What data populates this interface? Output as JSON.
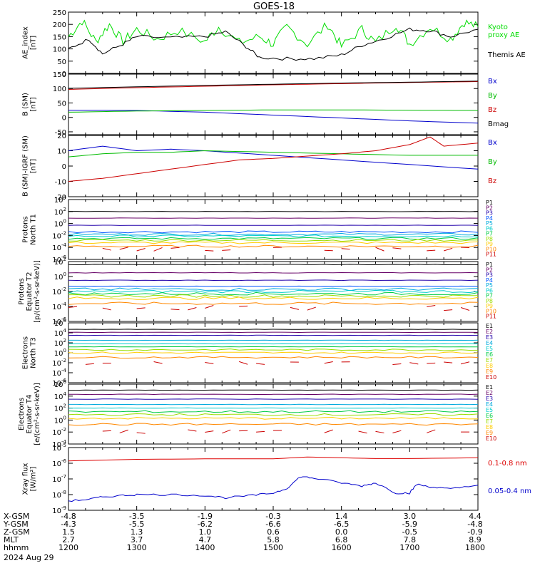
{
  "chart_data": {
    "type": "line",
    "title": "GOES-18",
    "footer": {
      "rows": [
        {
          "label": "X-GSM",
          "values": [
            "-4.8",
            "-3.5",
            "-1.9",
            "-0.3",
            "1.4",
            "3.0",
            "4.4"
          ]
        },
        {
          "label": "Y-GSM",
          "values": [
            "-4.3",
            "-5.5",
            "-6.2",
            "-6.6",
            "-6.5",
            "-5.9",
            "-4.8"
          ]
        },
        {
          "label": "Z-GSM",
          "values": [
            "1.5",
            "1.3",
            "1.0",
            "0.6",
            "0.0",
            "-0.5",
            "-0.9"
          ]
        },
        {
          "label": "MLT",
          "values": [
            "2.7",
            "3.7",
            "4.7",
            "5.8",
            "6.8",
            "7.8",
            "8.9"
          ]
        },
        {
          "label": "hhmm",
          "values": [
            "1200",
            "1300",
            "1400",
            "1500",
            "1600",
            "1700",
            "1800"
          ]
        }
      ],
      "date": "2024 Aug 29"
    },
    "x": {
      "range": [
        "12:00",
        "18:00"
      ],
      "ticks": [
        "1200",
        "1300",
        "1400",
        "1500",
        "1600",
        "1700",
        "1800"
      ]
    },
    "panels": [
      {
        "ylabel": [
          "AE_index",
          "[nT]"
        ],
        "ylim": [
          0,
          250
        ],
        "log": false,
        "yticks": [
          "0",
          "50",
          "100",
          "150",
          "200",
          "250"
        ],
        "series": [
          {
            "name": "Kyoto proxy AE",
            "color": "#00dd00",
            "label_lines": [
              "Kyoto",
              "proxy AE"
            ],
            "points": [
              [
                0,
                150
              ],
              [
                0.2,
                215
              ],
              [
                0.4,
                130
              ],
              [
                0.6,
                200
              ],
              [
                0.8,
                130
              ],
              [
                1.0,
                180
              ],
              [
                1.3,
                140
              ],
              [
                1.6,
                175
              ],
              [
                2.0,
                130
              ],
              [
                2.2,
                190
              ],
              [
                2.5,
                125
              ],
              [
                2.8,
                150
              ],
              [
                3.0,
                120
              ],
              [
                3.2,
                190
              ],
              [
                3.5,
                120
              ],
              [
                3.8,
                200
              ],
              [
                4.0,
                110
              ],
              [
                4.3,
                180
              ],
              [
                4.5,
                125
              ],
              [
                4.8,
                200
              ],
              [
                5.0,
                120
              ],
              [
                5.3,
                190
              ],
              [
                5.6,
                140
              ],
              [
                5.8,
                210
              ],
              [
                6.0,
                190
              ]
            ]
          },
          {
            "name": "Themis AE",
            "color": "#000000",
            "label_lines": [
              "Themis AE"
            ],
            "points": [
              [
                0,
                100
              ],
              [
                0.3,
                140
              ],
              [
                0.5,
                80
              ],
              [
                0.8,
                120
              ],
              [
                1.0,
                150
              ],
              [
                1.5,
                145
              ],
              [
                2.0,
                150
              ],
              [
                2.3,
                170
              ],
              [
                2.6,
                110
              ],
              [
                2.8,
                65
              ],
              [
                3.2,
                60
              ],
              [
                3.6,
                60
              ],
              [
                4.0,
                75
              ],
              [
                4.3,
                115
              ],
              [
                4.6,
                140
              ],
              [
                5.0,
                180
              ],
              [
                5.3,
                175
              ],
              [
                5.6,
                150
              ],
              [
                6.0,
                180
              ]
            ]
          }
        ]
      },
      {
        "ylabel": [
          "B (SM)",
          "[nT]"
        ],
        "ylim": [
          -60,
          150
        ],
        "log": false,
        "yticks": [
          "-50",
          "0",
          "50",
          "100",
          "150"
        ],
        "series": [
          {
            "name": "Bx",
            "color": "#0000cc",
            "points": [
              [
                0,
                25
              ],
              [
                1,
                24
              ],
              [
                2,
                18
              ],
              [
                3,
                8
              ],
              [
                4,
                -2
              ],
              [
                5,
                -12
              ],
              [
                6,
                -20
              ]
            ]
          },
          {
            "name": "By",
            "color": "#00bb00",
            "points": [
              [
                0,
                18
              ],
              [
                1,
                22
              ],
              [
                2,
                24
              ],
              [
                3,
                26
              ],
              [
                4,
                26
              ],
              [
                5,
                25
              ],
              [
                6,
                24
              ]
            ]
          },
          {
            "name": "Bz",
            "color": "#cc0000",
            "points": [
              [
                0,
                97
              ],
              [
                1,
                103
              ],
              [
                2,
                108
              ],
              [
                3,
                113
              ],
              [
                4,
                117
              ],
              [
                5,
                121
              ],
              [
                6,
                124
              ]
            ]
          },
          {
            "name": "Bmag",
            "color": "#000000",
            "points": [
              [
                0,
                101
              ],
              [
                1,
                106
              ],
              [
                2,
                111
              ],
              [
                3,
                115
              ],
              [
                4,
                119
              ],
              [
                5,
                122
              ],
              [
                6,
                126
              ]
            ]
          }
        ]
      },
      {
        "ylabel": [
          "B (SM)-IGRF (SM)",
          "[nT]"
        ],
        "ylim": [
          -20,
          20
        ],
        "log": false,
        "yticks": [
          "-20",
          "-10",
          "0",
          "10",
          "20"
        ],
        "series": [
          {
            "name": "Bx",
            "color": "#0000cc",
            "points": [
              [
                0,
                10
              ],
              [
                0.5,
                13
              ],
              [
                1,
                10
              ],
              [
                1.5,
                11
              ],
              [
                2,
                10
              ],
              [
                3,
                7
              ],
              [
                4,
                4
              ],
              [
                5,
                1
              ],
              [
                6,
                -2
              ]
            ]
          },
          {
            "name": "By",
            "color": "#00bb00",
            "points": [
              [
                0,
                6
              ],
              [
                0.5,
                8
              ],
              [
                1,
                9
              ],
              [
                1.5,
                9
              ],
              [
                2,
                10
              ],
              [
                3,
                9
              ],
              [
                4,
                8
              ],
              [
                5,
                7
              ],
              [
                6,
                7
              ]
            ]
          },
          {
            "name": "Bz",
            "color": "#cc0000",
            "points": [
              [
                0,
                -10
              ],
              [
                0.5,
                -8
              ],
              [
                1,
                -5
              ],
              [
                1.5,
                -2
              ],
              [
                2,
                1
              ],
              [
                2.5,
                4
              ],
              [
                3,
                5
              ],
              [
                4,
                8
              ],
              [
                4.5,
                10
              ],
              [
                5,
                14
              ],
              [
                5.3,
                19
              ],
              [
                5.5,
                13
              ],
              [
                6,
                15
              ]
            ]
          }
        ]
      },
      {
        "ylabel": [
          "Protons",
          "North T1"
        ],
        "ylim": [
          -6,
          4
        ],
        "log": true,
        "yticks": [
          -6,
          -4,
          -2,
          0,
          2,
          4
        ],
        "series": [
          {
            "name": "P1",
            "color": "#000000",
            "level": 2.0
          },
          {
            "name": "P2",
            "color": "#660066",
            "level": 0.9
          },
          {
            "name": "P3",
            "color": "#2200aa",
            "level": -0.3
          },
          {
            "name": "P4",
            "color": "#0055ff",
            "level": -1.4
          },
          {
            "name": "P5",
            "color": "#00aadd",
            "level": -1.8
          },
          {
            "name": "P6",
            "color": "#00cccc",
            "level": -2.1
          },
          {
            "name": "P7",
            "color": "#00cc44",
            "level": -2.5
          },
          {
            "name": "P8",
            "color": "#99dd00",
            "level": -2.8
          },
          {
            "name": "P9",
            "color": "#ffcc00",
            "level": -3.2
          },
          {
            "name": "P10",
            "color": "#ff8800",
            "level": -3.8
          },
          {
            "name": "P11",
            "color": "#cc0000",
            "level": -4.3
          }
        ]
      },
      {
        "ylabel": [
          "Protons",
          "Equator T2",
          "[p/(cm²-s-sr-keV)]"
        ],
        "ylim": [
          -6,
          2
        ],
        "log": true,
        "yticks": [
          -6,
          -4,
          -2,
          0,
          2
        ],
        "series": [
          {
            "name": "P1",
            "color": "#000000",
            "level": 1.6
          },
          {
            "name": "P2",
            "color": "#660066",
            "level": 0.5
          },
          {
            "name": "P3",
            "color": "#2200aa",
            "level": -0.5
          },
          {
            "name": "P4",
            "color": "#0055ff",
            "level": -1.3
          },
          {
            "name": "P5",
            "color": "#00aadd",
            "level": -1.7
          },
          {
            "name": "P6",
            "color": "#00cccc",
            "level": -2.0
          },
          {
            "name": "P7",
            "color": "#00cc44",
            "level": -2.3
          },
          {
            "name": "P8",
            "color": "#99dd00",
            "level": -2.6
          },
          {
            "name": "P9",
            "color": "#ffcc00",
            "level": -2.9
          },
          {
            "name": "P10",
            "color": "#ff8800",
            "level": -3.6
          },
          {
            "name": "P11",
            "color": "#cc0000",
            "level": -4.2
          }
        ]
      },
      {
        "ylabel": [
          "Electrons",
          "North T3"
        ],
        "ylim": [
          -6,
          6
        ],
        "log": true,
        "yticks": [
          -6,
          -4,
          -2,
          0,
          2,
          4,
          6
        ],
        "series": [
          {
            "name": "E1",
            "color": "#000000",
            "level": 4.7
          },
          {
            "name": "E2",
            "color": "#660066",
            "level": 4.1
          },
          {
            "name": "E3",
            "color": "#2200aa",
            "level": 3.5
          },
          {
            "name": "E4",
            "color": "#00aadd",
            "level": 2.5
          },
          {
            "name": "E5",
            "color": "#00cccc",
            "level": 1.8
          },
          {
            "name": "E6",
            "color": "#00cc44",
            "level": 1.2
          },
          {
            "name": "E7",
            "color": "#99dd00",
            "level": 0.6
          },
          {
            "name": "E8",
            "color": "#ffcc00",
            "level": 0.0
          },
          {
            "name": "E9",
            "color": "#ff8800",
            "level": -0.9
          },
          {
            "name": "E10",
            "color": "#cc0000",
            "level": -2.0
          }
        ]
      },
      {
        "ylabel": [
          "Electrons",
          "Equator T4",
          "[e/(cm²-s-sr-keV)]"
        ],
        "ylim": [
          -4,
          6
        ],
        "log": true,
        "yticks": [
          -4,
          -2,
          0,
          2,
          4,
          6
        ],
        "series": [
          {
            "name": "E1",
            "color": "#000000",
            "level": 5.0
          },
          {
            "name": "E2",
            "color": "#660066",
            "level": 4.3
          },
          {
            "name": "E3",
            "color": "#2200aa",
            "level": 3.5
          },
          {
            "name": "E4",
            "color": "#00aadd",
            "level": 2.6
          },
          {
            "name": "E5",
            "color": "#00cccc",
            "level": 2.0
          },
          {
            "name": "E6",
            "color": "#00cc44",
            "level": 1.4
          },
          {
            "name": "E7",
            "color": "#99dd00",
            "level": 0.9
          },
          {
            "name": "E8",
            "color": "#ffcc00",
            "level": 0.3
          },
          {
            "name": "E9",
            "color": "#ff8800",
            "level": -0.7
          },
          {
            "name": "E10",
            "color": "#cc0000",
            "level": -1.9
          }
        ]
      },
      {
        "ylabel": [
          "Xray flux",
          "[W/m²]"
        ],
        "ylim": [
          -9,
          -5
        ],
        "log": true,
        "yticks": [
          -9,
          -8,
          -7,
          -6,
          -5
        ],
        "series": [
          {
            "name": "0.1-0.8 nm",
            "color": "#dd0000",
            "points": [
              [
                0,
                -5.85
              ],
              [
                1,
                -5.75
              ],
              [
                2,
                -5.72
              ],
              [
                3,
                -5.72
              ],
              [
                3.5,
                -5.6
              ],
              [
                4.0,
                -5.65
              ],
              [
                4.5,
                -5.7
              ],
              [
                5,
                -5.7
              ],
              [
                6,
                -5.65
              ]
            ]
          },
          {
            "name": "0.05-0.4 nm",
            "color": "#0000cc",
            "points": [
              [
                0,
                -8.4
              ],
              [
                0.3,
                -8.3
              ],
              [
                0.5,
                -8.15
              ],
              [
                0.8,
                -8.05
              ],
              [
                1,
                -8.0
              ],
              [
                1.5,
                -8.0
              ],
              [
                2,
                -8.05
              ],
              [
                2.3,
                -8.2
              ],
              [
                2.7,
                -8.05
              ],
              [
                3,
                -7.9
              ],
              [
                3.2,
                -7.6
              ],
              [
                3.4,
                -6.85
              ],
              [
                3.6,
                -6.95
              ],
              [
                4.0,
                -7.25
              ],
              [
                4.3,
                -7.45
              ],
              [
                4.5,
                -7.25
              ],
              [
                4.8,
                -7.9
              ],
              [
                5.0,
                -7.9
              ],
              [
                5.1,
                -7.35
              ],
              [
                5.3,
                -7.5
              ],
              [
                5.6,
                -7.65
              ],
              [
                6.0,
                -7.4
              ]
            ]
          }
        ]
      }
    ]
  }
}
